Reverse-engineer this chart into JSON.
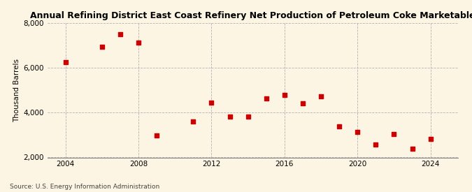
{
  "title": "Annual Refining District East Coast Refinery Net Production of Petroleum Coke Marketable",
  "ylabel": "Thousand Barrels",
  "source": "Source: U.S. Energy Information Administration",
  "years": [
    2004,
    2006,
    2007,
    2008,
    2009,
    2011,
    2012,
    2013,
    2014,
    2015,
    2016,
    2017,
    2018,
    2019,
    2020,
    2021,
    2022,
    2023,
    2024
  ],
  "values": [
    6270,
    6950,
    7500,
    7120,
    2980,
    3620,
    4450,
    3830,
    3820,
    4620,
    4800,
    4430,
    4720,
    3400,
    3150,
    2590,
    3050,
    2380,
    2820
  ],
  "marker_color": "#cc0000",
  "marker_size": 25,
  "background_color": "#fdf5e4",
  "grid_color": "#aaaaaa",
  "ylim": [
    2000,
    8000
  ],
  "yticks": [
    2000,
    4000,
    6000,
    8000
  ],
  "xlim": [
    2003,
    2025.5
  ],
  "xticks": [
    2004,
    2008,
    2012,
    2016,
    2020,
    2024
  ],
  "title_fontsize": 9,
  "label_fontsize": 7.5,
  "tick_fontsize": 7.5,
  "source_fontsize": 6.5
}
